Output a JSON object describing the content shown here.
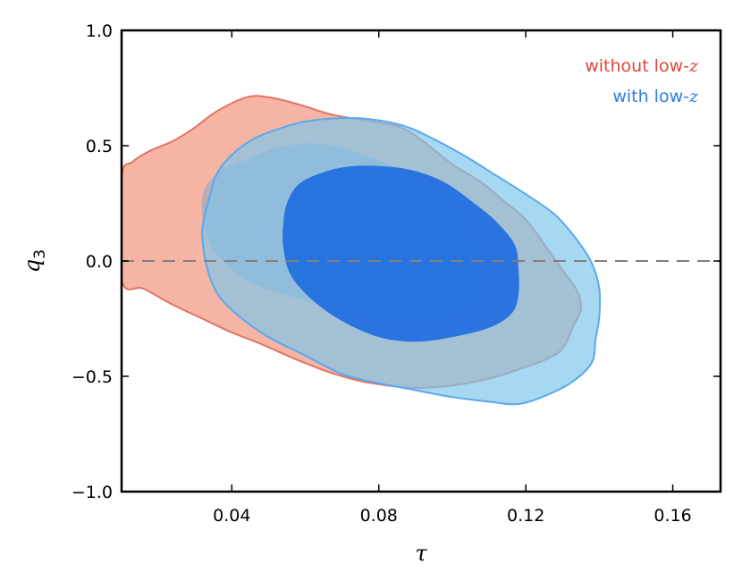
{
  "chart_data": {
    "type": "contour",
    "title": "",
    "xlabel": "τ",
    "ylabel": "q",
    "ylabel_subscript": "3",
    "xlim": [
      0.01,
      0.173
    ],
    "ylim": [
      -1.0,
      1.0
    ],
    "xticks": [
      0.04,
      0.08,
      0.12,
      0.16
    ],
    "xtick_labels": [
      "0.04",
      "0.08",
      "0.12",
      "0.16"
    ],
    "yticks": [
      -1.0,
      -0.5,
      0.0,
      0.5,
      1.0
    ],
    "ytick_labels": [
      "−1.0",
      "−0.5",
      "0.0",
      "0.5",
      "1.0"
    ],
    "reference_line": {
      "y": 0.0,
      "style": "dashed",
      "color": "#808080"
    },
    "legend_position": "top-right",
    "series": [
      {
        "name": "without low-z",
        "legend_prefix": "without low-",
        "legend_var": "z",
        "text_color": "#e0463a",
        "contours": [
          {
            "level": "95%",
            "fill": "#f4a08b",
            "opacity": 0.78,
            "stroke": "#e07565",
            "points": [
              [
                0.01,
                0.36
              ],
              [
                0.013,
                0.43
              ],
              [
                0.018,
                0.48
              ],
              [
                0.024,
                0.52
              ],
              [
                0.03,
                0.58
              ],
              [
                0.036,
                0.65
              ],
              [
                0.044,
                0.71
              ],
              [
                0.05,
                0.71
              ],
              [
                0.058,
                0.68
              ],
              [
                0.066,
                0.64
              ],
              [
                0.072,
                0.62
              ],
              [
                0.08,
                0.6
              ],
              [
                0.086,
                0.58
              ],
              [
                0.092,
                0.52
              ],
              [
                0.1,
                0.42
              ],
              [
                0.108,
                0.34
              ],
              [
                0.114,
                0.26
              ],
              [
                0.12,
                0.18
              ],
              [
                0.126,
                0.05
              ],
              [
                0.13,
                -0.04
              ],
              [
                0.134,
                -0.13
              ],
              [
                0.135,
                -0.21
              ],
              [
                0.133,
                -0.28
              ],
              [
                0.13,
                -0.38
              ],
              [
                0.125,
                -0.43
              ],
              [
                0.118,
                -0.47
              ],
              [
                0.11,
                -0.51
              ],
              [
                0.1,
                -0.54
              ],
              [
                0.09,
                -0.55
              ],
              [
                0.078,
                -0.53
              ],
              [
                0.068,
                -0.49
              ],
              [
                0.058,
                -0.43
              ],
              [
                0.048,
                -0.36
              ],
              [
                0.04,
                -0.31
              ],
              [
                0.032,
                -0.25
              ],
              [
                0.024,
                -0.19
              ],
              [
                0.016,
                -0.12
              ],
              [
                0.01,
                -0.08
              ]
            ]
          },
          {
            "level": "68%",
            "fill": "#a6a8bc",
            "opacity": 0.75,
            "stroke": "none",
            "points": [
              [
                0.032,
                0.28
              ],
              [
                0.036,
                0.38
              ],
              [
                0.044,
                0.44
              ],
              [
                0.052,
                0.49
              ],
              [
                0.06,
                0.51
              ],
              [
                0.068,
                0.5
              ],
              [
                0.076,
                0.46
              ],
              [
                0.084,
                0.41
              ],
              [
                0.09,
                0.36
              ],
              [
                0.095,
                0.31
              ],
              [
                0.1,
                0.21
              ],
              [
                0.104,
                0.11
              ],
              [
                0.106,
                0.01
              ],
              [
                0.107,
                -0.09
              ],
              [
                0.105,
                -0.17
              ],
              [
                0.1,
                -0.22
              ],
              [
                0.094,
                -0.24
              ],
              [
                0.086,
                -0.24
              ],
              [
                0.074,
                -0.22
              ],
              [
                0.06,
                -0.17
              ],
              [
                0.046,
                -0.1
              ],
              [
                0.038,
                -0.01
              ],
              [
                0.033,
                0.12
              ]
            ]
          }
        ]
      },
      {
        "name": "with low-z",
        "legend_prefix": "with low-",
        "legend_var": "z",
        "text_color": "#2f7fe0",
        "contours": [
          {
            "level": "95%",
            "fill": "#7cc6ec",
            "opacity": 0.68,
            "stroke": "#5aa8ee",
            "points": [
              [
                0.034,
                0.28
              ],
              [
                0.036,
                0.38
              ],
              [
                0.04,
                0.46
              ],
              [
                0.046,
                0.53
              ],
              [
                0.054,
                0.58
              ],
              [
                0.062,
                0.61
              ],
              [
                0.072,
                0.62
              ],
              [
                0.08,
                0.61
              ],
              [
                0.088,
                0.58
              ],
              [
                0.096,
                0.52
              ],
              [
                0.104,
                0.45
              ],
              [
                0.112,
                0.37
              ],
              [
                0.12,
                0.29
              ],
              [
                0.128,
                0.2
              ],
              [
                0.134,
                0.09
              ],
              [
                0.138,
                -0.01
              ],
              [
                0.14,
                -0.12
              ],
              [
                0.14,
                -0.24
              ],
              [
                0.139,
                -0.34
              ],
              [
                0.138,
                -0.44
              ],
              [
                0.133,
                -0.52
              ],
              [
                0.126,
                -0.58
              ],
              [
                0.118,
                -0.62
              ],
              [
                0.11,
                -0.61
              ],
              [
                0.1,
                -0.59
              ],
              [
                0.09,
                -0.56
              ],
              [
                0.08,
                -0.53
              ],
              [
                0.07,
                -0.49
              ],
              [
                0.06,
                -0.41
              ],
              [
                0.05,
                -0.33
              ],
              [
                0.042,
                -0.24
              ],
              [
                0.036,
                -0.14
              ],
              [
                0.033,
                -0.01
              ],
              [
                0.032,
                0.14
              ]
            ]
          },
          {
            "level": "68%",
            "fill": "#1f6ee0",
            "opacity": 0.92,
            "stroke": "none",
            "points": [
              [
                0.054,
                0.16
              ],
              [
                0.055,
                0.25
              ],
              [
                0.058,
                0.33
              ],
              [
                0.064,
                0.38
              ],
              [
                0.072,
                0.41
              ],
              [
                0.082,
                0.41
              ],
              [
                0.09,
                0.39
              ],
              [
                0.098,
                0.34
              ],
              [
                0.106,
                0.25
              ],
              [
                0.112,
                0.17
              ],
              [
                0.117,
                0.07
              ],
              [
                0.118,
                -0.03
              ],
              [
                0.118,
                -0.15
              ],
              [
                0.116,
                -0.23
              ],
              [
                0.11,
                -0.29
              ],
              [
                0.1,
                -0.33
              ],
              [
                0.09,
                -0.35
              ],
              [
                0.08,
                -0.33
              ],
              [
                0.07,
                -0.26
              ],
              [
                0.062,
                -0.17
              ],
              [
                0.056,
                -0.06
              ],
              [
                0.054,
                0.06
              ]
            ]
          }
        ]
      }
    ]
  }
}
